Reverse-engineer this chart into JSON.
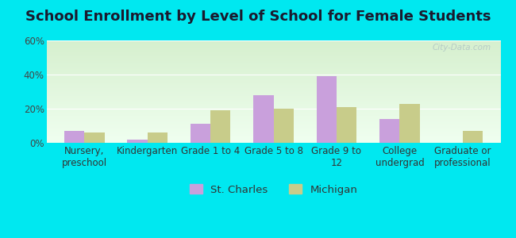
{
  "title": "School Enrollment by Level of School for Female Students",
  "categories": [
    "Nursery,\npreschool",
    "Kindergarten",
    "Grade 1 to 4",
    "Grade 5 to 8",
    "Grade 9 to\n12",
    "College\nundergrad",
    "Graduate or\nprofessional"
  ],
  "st_charles": [
    7,
    2,
    11,
    28,
    39,
    14,
    0
  ],
  "michigan": [
    6,
    6,
    19,
    20,
    21,
    23,
    7
  ],
  "bar_color_stcharles": "#c9a0dc",
  "bar_color_michigan": "#c8cc8a",
  "background_outer": "#00e8f0",
  "ylim": [
    0,
    60
  ],
  "yticks": [
    0,
    20,
    40,
    60
  ],
  "ytick_labels": [
    "0%",
    "20%",
    "40%",
    "60%"
  ],
  "legend_labels": [
    "St. Charles",
    "Michigan"
  ],
  "title_fontsize": 13,
  "tick_fontsize": 8.5,
  "legend_fontsize": 9.5
}
